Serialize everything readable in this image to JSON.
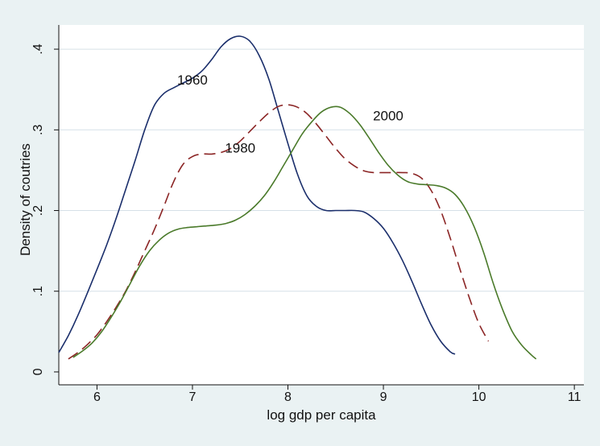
{
  "chart_data": {
    "type": "line",
    "title": "",
    "xlabel": "log gdp per capita",
    "ylabel": "Density of coutries",
    "xlim": [
      5.6,
      11.1
    ],
    "ylim": [
      0,
      0.43
    ],
    "x_ticks": [
      6,
      7,
      8,
      9,
      10,
      11
    ],
    "x_tick_labels": [
      "6",
      "7",
      "8",
      "9",
      "10",
      "11"
    ],
    "y_ticks": [
      0,
      0.1,
      0.2,
      0.3,
      0.4
    ],
    "y_tick_labels": [
      "0",
      ".1",
      ".2",
      ".3",
      ".4"
    ],
    "grid": "horizontal",
    "legend": "none",
    "series": [
      {
        "name": "1960",
        "color": "#1a2e6b",
        "style": "solid",
        "label_at": [
          7.0,
          0.362
        ],
        "points": [
          [
            5.6,
            0.024
          ],
          [
            5.7,
            0.045
          ],
          [
            5.8,
            0.07
          ],
          [
            5.9,
            0.098
          ],
          [
            6.0,
            0.127
          ],
          [
            6.1,
            0.157
          ],
          [
            6.2,
            0.19
          ],
          [
            6.3,
            0.226
          ],
          [
            6.4,
            0.262
          ],
          [
            6.5,
            0.3
          ],
          [
            6.6,
            0.33
          ],
          [
            6.7,
            0.345
          ],
          [
            6.8,
            0.352
          ],
          [
            6.9,
            0.358
          ],
          [
            7.0,
            0.364
          ],
          [
            7.1,
            0.373
          ],
          [
            7.2,
            0.387
          ],
          [
            7.3,
            0.403
          ],
          [
            7.4,
            0.413
          ],
          [
            7.5,
            0.416
          ],
          [
            7.6,
            0.41
          ],
          [
            7.7,
            0.392
          ],
          [
            7.8,
            0.363
          ],
          [
            7.9,
            0.323
          ],
          [
            8.0,
            0.283
          ],
          [
            8.1,
            0.245
          ],
          [
            8.2,
            0.218
          ],
          [
            8.3,
            0.205
          ],
          [
            8.4,
            0.2
          ],
          [
            8.5,
            0.2
          ],
          [
            8.6,
            0.2
          ],
          [
            8.7,
            0.2
          ],
          [
            8.8,
            0.198
          ],
          [
            8.9,
            0.19
          ],
          [
            9.0,
            0.178
          ],
          [
            9.1,
            0.16
          ],
          [
            9.2,
            0.138
          ],
          [
            9.3,
            0.112
          ],
          [
            9.4,
            0.084
          ],
          [
            9.5,
            0.058
          ],
          [
            9.6,
            0.038
          ],
          [
            9.7,
            0.025
          ],
          [
            9.75,
            0.022
          ]
        ]
      },
      {
        "name": "1980",
        "color": "#8b2525",
        "style": "dashed",
        "label_at": [
          7.5,
          0.278
        ],
        "points": [
          [
            5.7,
            0.016
          ],
          [
            5.8,
            0.024
          ],
          [
            5.9,
            0.034
          ],
          [
            6.0,
            0.046
          ],
          [
            6.1,
            0.062
          ],
          [
            6.2,
            0.08
          ],
          [
            6.3,
            0.1
          ],
          [
            6.4,
            0.124
          ],
          [
            6.5,
            0.15
          ],
          [
            6.6,
            0.176
          ],
          [
            6.7,
            0.205
          ],
          [
            6.8,
            0.235
          ],
          [
            6.9,
            0.257
          ],
          [
            7.0,
            0.267
          ],
          [
            7.1,
            0.27
          ],
          [
            7.2,
            0.27
          ],
          [
            7.3,
            0.272
          ],
          [
            7.4,
            0.277
          ],
          [
            7.5,
            0.286
          ],
          [
            7.6,
            0.298
          ],
          [
            7.7,
            0.31
          ],
          [
            7.8,
            0.321
          ],
          [
            7.9,
            0.329
          ],
          [
            8.0,
            0.331
          ],
          [
            8.1,
            0.328
          ],
          [
            8.2,
            0.32
          ],
          [
            8.3,
            0.307
          ],
          [
            8.4,
            0.292
          ],
          [
            8.5,
            0.277
          ],
          [
            8.6,
            0.264
          ],
          [
            8.7,
            0.255
          ],
          [
            8.8,
            0.249
          ],
          [
            8.9,
            0.247
          ],
          [
            9.0,
            0.247
          ],
          [
            9.1,
            0.247
          ],
          [
            9.2,
            0.247
          ],
          [
            9.3,
            0.246
          ],
          [
            9.4,
            0.24
          ],
          [
            9.5,
            0.225
          ],
          [
            9.6,
            0.2
          ],
          [
            9.7,
            0.166
          ],
          [
            9.8,
            0.128
          ],
          [
            9.9,
            0.092
          ],
          [
            10.0,
            0.06
          ],
          [
            10.1,
            0.038
          ]
        ]
      },
      {
        "name": "2000",
        "color": "#4a7a2a",
        "style": "solid",
        "label_at": [
          9.05,
          0.318
        ],
        "points": [
          [
            5.75,
            0.018
          ],
          [
            5.85,
            0.026
          ],
          [
            5.95,
            0.036
          ],
          [
            6.05,
            0.05
          ],
          [
            6.15,
            0.068
          ],
          [
            6.25,
            0.088
          ],
          [
            6.35,
            0.11
          ],
          [
            6.45,
            0.132
          ],
          [
            6.55,
            0.15
          ],
          [
            6.65,
            0.163
          ],
          [
            6.75,
            0.172
          ],
          [
            6.85,
            0.177
          ],
          [
            6.95,
            0.179
          ],
          [
            7.05,
            0.18
          ],
          [
            7.15,
            0.181
          ],
          [
            7.25,
            0.182
          ],
          [
            7.35,
            0.184
          ],
          [
            7.45,
            0.188
          ],
          [
            7.55,
            0.195
          ],
          [
            7.65,
            0.205
          ],
          [
            7.75,
            0.218
          ],
          [
            7.85,
            0.235
          ],
          [
            7.95,
            0.255
          ],
          [
            8.05,
            0.275
          ],
          [
            8.15,
            0.295
          ],
          [
            8.25,
            0.31
          ],
          [
            8.35,
            0.322
          ],
          [
            8.45,
            0.328
          ],
          [
            8.55,
            0.328
          ],
          [
            8.65,
            0.32
          ],
          [
            8.75,
            0.307
          ],
          [
            8.85,
            0.29
          ],
          [
            8.95,
            0.272
          ],
          [
            9.05,
            0.256
          ],
          [
            9.15,
            0.244
          ],
          [
            9.25,
            0.236
          ],
          [
            9.35,
            0.233
          ],
          [
            9.45,
            0.232
          ],
          [
            9.55,
            0.231
          ],
          [
            9.65,
            0.228
          ],
          [
            9.75,
            0.22
          ],
          [
            9.85,
            0.204
          ],
          [
            9.95,
            0.18
          ],
          [
            10.05,
            0.148
          ],
          [
            10.15,
            0.11
          ],
          [
            10.25,
            0.077
          ],
          [
            10.35,
            0.05
          ],
          [
            10.45,
            0.033
          ],
          [
            10.55,
            0.021
          ],
          [
            10.6,
            0.016
          ]
        ]
      }
    ]
  }
}
